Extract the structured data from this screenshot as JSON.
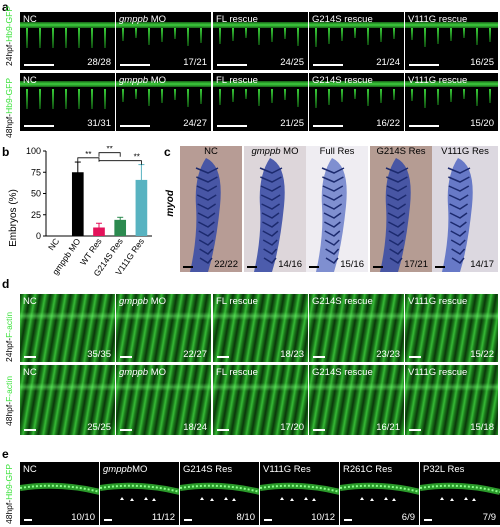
{
  "panel_labels": {
    "a": "a",
    "b": "b",
    "c": "c",
    "d": "d",
    "e": "e"
  },
  "panel_a": {
    "row_labels": [
      {
        "prefix": "24hpf-",
        "green": "Hb9-GFP"
      },
      {
        "prefix": "48hpf-",
        "green": "Hb9-GFP"
      }
    ],
    "rows": [
      [
        {
          "label": "NC",
          "italic": "",
          "suffix": "",
          "count": "28/28"
        },
        {
          "label": "",
          "italic": "gmppb",
          "suffix": " MO",
          "count": "17/21"
        },
        {
          "label": "FL  rescue",
          "italic": "",
          "suffix": "",
          "count": "24/25"
        },
        {
          "label": "G214S  rescue",
          "italic": "",
          "suffix": "",
          "count": "21/24"
        },
        {
          "label": "V111G  rescue",
          "italic": "",
          "suffix": "",
          "count": "16/25"
        }
      ],
      [
        {
          "label": "NC",
          "italic": "",
          "suffix": "",
          "count": "31/31"
        },
        {
          "label": "",
          "italic": "gmppb",
          "suffix": " MO",
          "count": "24/27"
        },
        {
          "label": "FL  rescue",
          "italic": "",
          "suffix": "",
          "count": "21/25"
        },
        {
          "label": "G214S  rescue",
          "italic": "",
          "suffix": "",
          "count": "16/22"
        },
        {
          "label": "V111G  rescue",
          "italic": "",
          "suffix": "",
          "count": "15/20"
        }
      ]
    ]
  },
  "panel_c": {
    "row_label": "myod",
    "panels": [
      {
        "label": "NC",
        "italic": "",
        "suffix": "",
        "count": "22/22",
        "bg": "#b79c95"
      },
      {
        "label": "",
        "italic": "gmppb",
        "suffix": " MO",
        "count": "14/16",
        "bg": "#ddd6da"
      },
      {
        "label": "Full Res",
        "italic": "",
        "suffix": "",
        "count": "15/16",
        "bg": "#efedf2"
      },
      {
        "label": "G214S Res",
        "italic": "",
        "suffix": "",
        "count": "17/21",
        "bg": "#b59c93"
      },
      {
        "label": "V111G Res",
        "italic": "",
        "suffix": "",
        "count": "14/17",
        "bg": "#dcd8e0"
      }
    ]
  },
  "panel_d": {
    "row_labels": [
      {
        "prefix": "24hpf-",
        "green": "F-actin"
      },
      {
        "prefix": "48hpf-",
        "green": "F-actin"
      }
    ],
    "rows": [
      [
        {
          "label": "NC",
          "italic": "",
          "suffix": "",
          "count": "35/35"
        },
        {
          "label": "",
          "italic": "gmppb",
          "suffix": " MO",
          "count": "22/27"
        },
        {
          "label": "FL rescue",
          "italic": "",
          "suffix": "",
          "count": "18/23"
        },
        {
          "label": "G214S  rescue",
          "italic": "",
          "suffix": "",
          "count": "23/23"
        },
        {
          "label": "V111G  rescue",
          "italic": "",
          "suffix": "",
          "count": "15/22"
        }
      ],
      [
        {
          "label": "NC",
          "italic": "",
          "suffix": "",
          "count": "25/25"
        },
        {
          "label": "",
          "italic": "gmppb",
          "suffix": " MO",
          "count": "18/24"
        },
        {
          "label": "FL rescue",
          "italic": "",
          "suffix": "",
          "count": "17/20"
        },
        {
          "label": "G214S  rescue",
          "italic": "",
          "suffix": "",
          "count": "16/21"
        },
        {
          "label": "V111G  rescue",
          "italic": "",
          "suffix": "",
          "count": "15/18"
        }
      ]
    ]
  },
  "panel_e": {
    "row_label": {
      "prefix": "48hpf-",
      "green": "Hb9-GFP"
    },
    "panels": [
      {
        "label": "NC",
        "italic": "",
        "suffix": "",
        "count": "10/10"
      },
      {
        "label": "",
        "italic": "gmppb",
        "suffix": "MO",
        "count": "11/12"
      },
      {
        "label": "G214S Res",
        "italic": "",
        "suffix": "",
        "count": "8/10"
      },
      {
        "label": "V111G Res",
        "italic": "",
        "suffix": "",
        "count": "10/12"
      },
      {
        "label": "R261C Res",
        "italic": "",
        "suffix": "",
        "count": "6/9"
      },
      {
        "label": "P32L Res",
        "italic": "",
        "suffix": "",
        "count": "7/9"
      }
    ]
  },
  "chart_data": {
    "type": "bar",
    "ylabel": "Embryos (%)",
    "ylim": [
      0,
      100
    ],
    "yticks": [
      "0",
      "25",
      "50",
      "75",
      "100"
    ],
    "categories": [
      "NC",
      "gmppb MO",
      "WT Res",
      "G214S Res",
      "V111G Res"
    ],
    "values": [
      0,
      75,
      10,
      19,
      66
    ],
    "errors": [
      0,
      12,
      5,
      3,
      18
    ],
    "colors": [
      "#000000",
      "#000000",
      "#e3125a",
      "#2c8a4f",
      "#58b3c1"
    ],
    "significance": [
      "**",
      "**",
      "**"
    ]
  }
}
